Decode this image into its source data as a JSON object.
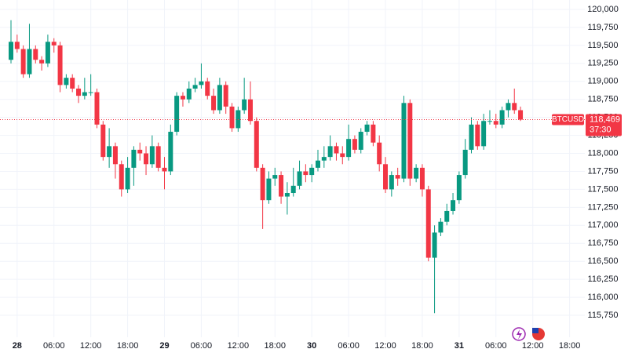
{
  "chart_data": {
    "type": "candlestick",
    "symbol": "BTCUSD",
    "countdown": "37:30",
    "last_price": {
      "value": 118469,
      "label": "118,469"
    },
    "up_color": "#089981",
    "down_color": "#f23645",
    "grid": true,
    "categories": [
      null,
      "28",
      null,
      null,
      null,
      null,
      null,
      "06:00",
      null,
      null,
      null,
      null,
      null,
      "12:00",
      null,
      null,
      null,
      null,
      null,
      "18:00",
      null,
      null,
      null,
      null,
      null,
      "29",
      null,
      null,
      null,
      null,
      null,
      "06:00",
      null,
      null,
      null,
      null,
      null,
      "12:00",
      null,
      null,
      null,
      null,
      null,
      "18:00",
      null,
      null,
      null,
      null,
      null,
      "30",
      null,
      null,
      null,
      null,
      null,
      "06:00",
      null,
      null,
      null,
      null,
      null,
      "12:00",
      null,
      null,
      null,
      null,
      null,
      "18:00",
      null,
      null,
      null,
      null,
      null,
      "31",
      null,
      null,
      null,
      null,
      null,
      "06:00",
      null,
      null,
      null,
      null,
      null,
      "12:00",
      null,
      null,
      null,
      null,
      null,
      "18:00"
    ],
    "open": [
      119300,
      119550,
      119450,
      119100,
      119450,
      119300,
      119250,
      119550,
      119500,
      118950,
      119050,
      118900,
      118800,
      118850,
      118850,
      118400,
      117950,
      118100,
      117850,
      117500,
      117800,
      118050,
      118000,
      117850,
      118100,
      117800,
      117750,
      118300,
      118800,
      118750,
      118900,
      118950,
      119000,
      118800,
      118600,
      118950,
      118650,
      118350,
      118600,
      118750,
      118450,
      117800,
      117350,
      117650,
      117700,
      117400,
      117450,
      117550,
      117750,
      117700,
      117800,
      117900,
      117950,
      118100,
      118000,
      117950,
      118200,
      118050,
      118300,
      118400,
      118150,
      117850,
      117500,
      117700,
      117650,
      118700,
      117650,
      117800,
      117500,
      116550,
      116900,
      117050,
      117200,
      117350,
      117700,
      118050,
      118400,
      118100,
      118450,
      118450,
      118400,
      118600,
      118700,
      118600,
      null,
      null,
      null,
      null,
      null,
      null,
      null,
      null
    ],
    "high": [
      119850,
      119650,
      119500,
      119800,
      119500,
      119350,
      119650,
      119600,
      119550,
      119100,
      119100,
      118950,
      119050,
      119100,
      118900,
      118450,
      118350,
      118150,
      117900,
      117950,
      118100,
      118150,
      118100,
      118250,
      118150,
      117950,
      118400,
      118850,
      118850,
      119000,
      119050,
      119250,
      119050,
      118900,
      119050,
      119000,
      118700,
      118650,
      119050,
      119000,
      118500,
      117850,
      117750,
      117800,
      117750,
      117600,
      117800,
      117900,
      117850,
      117850,
      118050,
      118100,
      118250,
      118150,
      118100,
      118400,
      118250,
      118350,
      118450,
      118450,
      118250,
      117950,
      117750,
      117800,
      118800,
      118750,
      117850,
      117850,
      117550,
      117000,
      117100,
      117300,
      117450,
      117750,
      118200,
      118500,
      118450,
      118550,
      118600,
      118550,
      118650,
      118750,
      118900,
      118650,
      null,
      null,
      null,
      null,
      null,
      null,
      null,
      null
    ],
    "low": [
      119250,
      119400,
      119050,
      119050,
      119250,
      119150,
      119200,
      119400,
      118850,
      118900,
      118850,
      118700,
      118750,
      118800,
      118350,
      117900,
      117800,
      117650,
      117400,
      117450,
      117550,
      117900,
      117700,
      117800,
      117750,
      117500,
      117700,
      118250,
      118650,
      118700,
      118850,
      118900,
      118750,
      118550,
      118550,
      118550,
      118300,
      118300,
      118550,
      118400,
      117750,
      116950,
      117300,
      117550,
      117300,
      117150,
      117400,
      117500,
      117600,
      117600,
      117750,
      117800,
      117900,
      117900,
      117850,
      117900,
      118000,
      118000,
      118250,
      118100,
      117750,
      117450,
      117400,
      117550,
      117600,
      117550,
      117600,
      117400,
      116500,
      115780,
      116850,
      117000,
      117150,
      117300,
      117650,
      118000,
      118050,
      118050,
      118400,
      118350,
      118350,
      118500,
      118550,
      118450,
      null,
      null,
      null,
      null,
      null,
      null,
      null,
      null
    ],
    "close": [
      119550,
      119450,
      119100,
      119450,
      119300,
      119250,
      119550,
      119500,
      118950,
      119050,
      118900,
      118800,
      118850,
      118850,
      118400,
      117950,
      118100,
      117850,
      117500,
      117800,
      118050,
      118000,
      117850,
      118100,
      117800,
      117750,
      118300,
      118800,
      118750,
      118900,
      118950,
      119000,
      118800,
      118600,
      118950,
      118650,
      118350,
      118600,
      118750,
      118450,
      117800,
      117350,
      117650,
      117700,
      117400,
      117450,
      117550,
      117750,
      117700,
      117800,
      117900,
      117950,
      118100,
      118000,
      117950,
      118200,
      118050,
      118300,
      118400,
      118150,
      117850,
      117500,
      117700,
      117650,
      118700,
      117650,
      117800,
      117500,
      116550,
      116900,
      117050,
      117200,
      117350,
      117700,
      118050,
      118400,
      118100,
      118450,
      118450,
      118400,
      118600,
      118700,
      118600,
      118469,
      null,
      null,
      null,
      null,
      null,
      null,
      null,
      null
    ],
    "ylim": [
      115445,
      120131
    ],
    "yticks": [
      {
        "value": 120000,
        "label": "120,000"
      },
      {
        "value": 119750,
        "label": "119,750"
      },
      {
        "value": 119500,
        "label": "119,500"
      },
      {
        "value": 119250,
        "label": "119,250"
      },
      {
        "value": 119000,
        "label": "119,000"
      },
      {
        "value": 118750,
        "label": "118,750"
      },
      {
        "value": 118500,
        "label": "118,500"
      },
      {
        "value": 118250,
        "label": "118,250"
      },
      {
        "value": 118000,
        "label": "118,000"
      },
      {
        "value": 117750,
        "label": "117,750"
      },
      {
        "value": 117500,
        "label": "117,500"
      },
      {
        "value": 117250,
        "label": "117,250"
      },
      {
        "value": 117000,
        "label": "117,000"
      },
      {
        "value": 116750,
        "label": "116,750"
      },
      {
        "value": 116500,
        "label": "116,500"
      },
      {
        "value": 116250,
        "label": "116,250"
      },
      {
        "value": 116000,
        "label": "116,000"
      },
      {
        "value": 115750,
        "label": "115,750"
      }
    ]
  }
}
